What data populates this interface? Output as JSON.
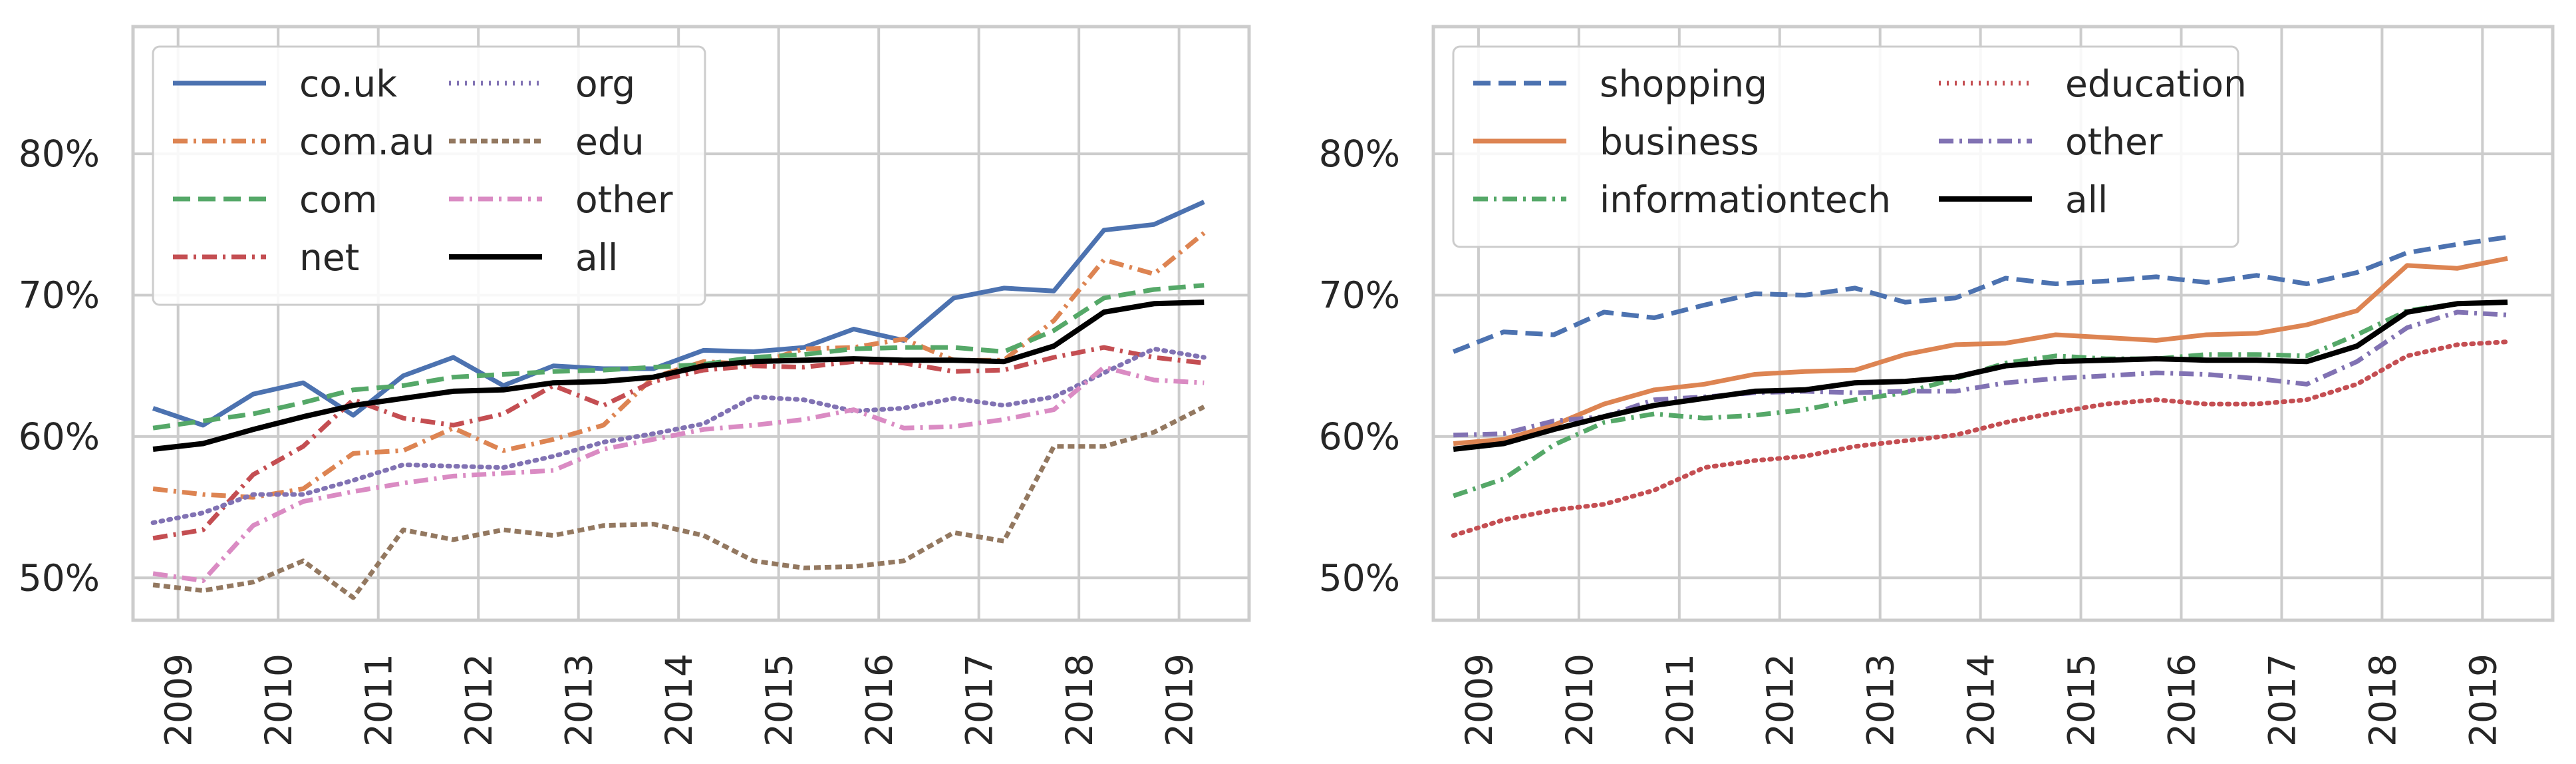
{
  "chart_data": [
    {
      "type": "line",
      "title": "",
      "xlabel": "",
      "ylabel": "",
      "xlim": [
        2008.55,
        2019.7
      ],
      "ylim": [
        47,
        89
      ],
      "grid": true,
      "legend_placement": "top-left",
      "legend_columns": 2,
      "x_ticks": [
        2009,
        2010,
        2011,
        2012,
        2013,
        2014,
        2015,
        2016,
        2017,
        2018,
        2019
      ],
      "x_tick_labels": [
        "2009",
        "2010",
        "2011",
        "2012",
        "2013",
        "2014",
        "2015",
        "2016",
        "2017",
        "2018",
        "2019"
      ],
      "y_ticks": [
        50,
        60,
        70,
        80
      ],
      "y_tick_labels": [
        "50%",
        "60%",
        "70%",
        "80%"
      ],
      "x": [
        2008.75,
        2009.25,
        2009.75,
        2010.25,
        2010.75,
        2011.25,
        2011.75,
        2012.25,
        2012.75,
        2013.25,
        2013.75,
        2014.25,
        2014.75,
        2015.25,
        2015.75,
        2016.25,
        2016.75,
        2017.25,
        2017.75,
        2018.25,
        2018.75,
        2019.25
      ],
      "series": [
        {
          "name": "co.uk",
          "color": "#4c72b0",
          "dash": "solid",
          "values": [
            62.0,
            60.8,
            63.0,
            63.8,
            61.5,
            64.3,
            65.6,
            63.6,
            65.0,
            64.8,
            64.8,
            66.1,
            66.0,
            66.3,
            67.6,
            66.8,
            69.8,
            70.5,
            70.3,
            74.6,
            75.0,
            76.6
          ]
        },
        {
          "name": "com.au",
          "color": "#dd8452",
          "dash": "dashdot",
          "values": [
            56.3,
            55.9,
            55.7,
            56.3,
            58.8,
            59.0,
            60.6,
            59.0,
            59.8,
            60.8,
            64.2,
            65.3,
            65.1,
            66.2,
            66.3,
            66.9,
            65.4,
            65.4,
            68.2,
            72.5,
            71.5,
            74.4
          ]
        },
        {
          "name": "com",
          "color": "#55a868",
          "dash": "dashed",
          "values": [
            60.6,
            61.1,
            61.6,
            62.4,
            63.3,
            63.6,
            64.2,
            64.4,
            64.6,
            64.7,
            64.9,
            65.1,
            65.6,
            65.8,
            66.2,
            66.3,
            66.3,
            66.0,
            67.5,
            69.8,
            70.4,
            70.7
          ]
        },
        {
          "name": "net",
          "color": "#c44e52",
          "dash": "dashdot",
          "values": [
            52.8,
            53.4,
            57.3,
            59.3,
            62.6,
            61.3,
            60.8,
            61.6,
            63.6,
            62.2,
            63.9,
            64.7,
            65.0,
            64.9,
            65.3,
            65.2,
            64.6,
            64.7,
            65.6,
            66.3,
            65.6,
            65.2
          ]
        },
        {
          "name": "org",
          "color": "#8172b3",
          "dash": "dotted",
          "values": [
            53.9,
            54.6,
            55.9,
            55.9,
            56.9,
            58.0,
            57.9,
            57.8,
            58.6,
            59.6,
            60.2,
            60.9,
            62.8,
            62.6,
            61.8,
            62.0,
            62.7,
            62.2,
            62.8,
            64.5,
            66.2,
            65.6
          ]
        },
        {
          "name": "edu",
          "color": "#937860",
          "dash": "dashed_fine",
          "values": [
            49.5,
            49.1,
            49.7,
            51.2,
            48.6,
            53.4,
            52.7,
            53.4,
            53.0,
            53.7,
            53.8,
            53.0,
            51.2,
            50.7,
            50.8,
            51.2,
            53.2,
            52.6,
            59.3,
            59.3,
            60.3,
            62.1
          ]
        },
        {
          "name": "other",
          "color": "#da8bc3",
          "dash": "dashdot",
          "values": [
            50.3,
            49.8,
            53.7,
            55.4,
            56.1,
            56.7,
            57.2,
            57.4,
            57.6,
            59.1,
            59.8,
            60.5,
            60.8,
            61.2,
            61.9,
            60.6,
            60.7,
            61.2,
            61.9,
            64.9,
            64.0,
            63.8
          ]
        },
        {
          "name": "all",
          "color": "#000000",
          "dash": "solid",
          "values": [
            59.1,
            59.5,
            60.5,
            61.4,
            62.2,
            62.7,
            63.2,
            63.3,
            63.8,
            63.9,
            64.2,
            65.0,
            65.3,
            65.4,
            65.5,
            65.4,
            65.4,
            65.3,
            66.4,
            68.8,
            69.4,
            69.5
          ]
        }
      ]
    },
    {
      "type": "line",
      "title": "",
      "xlabel": "",
      "ylabel": "",
      "xlim": [
        2008.55,
        2019.7
      ],
      "ylim": [
        47,
        89
      ],
      "grid": true,
      "legend_placement": "top-left",
      "legend_columns": 2,
      "x_ticks": [
        2009,
        2010,
        2011,
        2012,
        2013,
        2014,
        2015,
        2016,
        2017,
        2018,
        2019
      ],
      "x_tick_labels": [
        "2009",
        "2010",
        "2011",
        "2012",
        "2013",
        "2014",
        "2015",
        "2016",
        "2017",
        "2018",
        "2019"
      ],
      "y_ticks": [
        50,
        60,
        70,
        80
      ],
      "y_tick_labels": [
        "50%",
        "60%",
        "70%",
        "80%"
      ],
      "x": [
        2008.75,
        2009.25,
        2009.75,
        2010.25,
        2010.75,
        2011.25,
        2011.75,
        2012.25,
        2012.75,
        2013.25,
        2013.75,
        2014.25,
        2014.75,
        2015.25,
        2015.75,
        2016.25,
        2016.75,
        2017.25,
        2017.75,
        2018.25,
        2018.75,
        2019.25
      ],
      "series": [
        {
          "name": "shopping",
          "color": "#4c72b0",
          "dash": "dashed",
          "values": [
            66.0,
            67.4,
            67.2,
            68.8,
            68.4,
            69.3,
            70.1,
            70.0,
            70.5,
            69.5,
            69.8,
            71.2,
            70.8,
            71.0,
            71.3,
            70.9,
            71.4,
            70.8,
            71.6,
            73.0,
            73.6,
            74.1
          ]
        },
        {
          "name": "business",
          "color": "#dd8452",
          "dash": "solid",
          "values": [
            59.5,
            59.8,
            60.8,
            62.3,
            63.3,
            63.7,
            64.4,
            64.6,
            64.7,
            65.8,
            66.5,
            66.6,
            67.2,
            67.0,
            66.8,
            67.2,
            67.3,
            67.9,
            68.9,
            72.1,
            71.9,
            72.6
          ]
        },
        {
          "name": "informationtech",
          "color": "#55a868",
          "dash": "dashdot",
          "values": [
            55.8,
            57.0,
            59.4,
            61.0,
            61.6,
            61.3,
            61.5,
            61.9,
            62.6,
            63.1,
            64.1,
            65.2,
            65.7,
            65.5,
            65.5,
            65.8,
            65.8,
            65.7,
            67.2,
            68.9,
            69.4,
            69.5
          ]
        },
        {
          "name": "education",
          "color": "#c44e52",
          "dash": "dotted",
          "values": [
            53.0,
            54.1,
            54.8,
            55.2,
            56.2,
            57.8,
            58.3,
            58.6,
            59.3,
            59.7,
            60.1,
            61.0,
            61.7,
            62.3,
            62.6,
            62.3,
            62.3,
            62.6,
            63.7,
            65.7,
            66.5,
            66.7
          ]
        },
        {
          "name": "other",
          "color": "#8172b3",
          "dash": "dashdot",
          "values": [
            60.1,
            60.2,
            61.1,
            61.4,
            62.6,
            62.8,
            63.1,
            63.2,
            63.1,
            63.2,
            63.2,
            63.8,
            64.1,
            64.3,
            64.5,
            64.4,
            64.1,
            63.7,
            65.3,
            67.7,
            68.8,
            68.6
          ]
        },
        {
          "name": "all",
          "color": "#000000",
          "dash": "solid",
          "values": [
            59.1,
            59.5,
            60.5,
            61.4,
            62.2,
            62.7,
            63.2,
            63.3,
            63.8,
            63.9,
            64.2,
            65.0,
            65.3,
            65.4,
            65.5,
            65.4,
            65.4,
            65.3,
            66.4,
            68.8,
            69.4,
            69.5
          ]
        }
      ]
    }
  ]
}
